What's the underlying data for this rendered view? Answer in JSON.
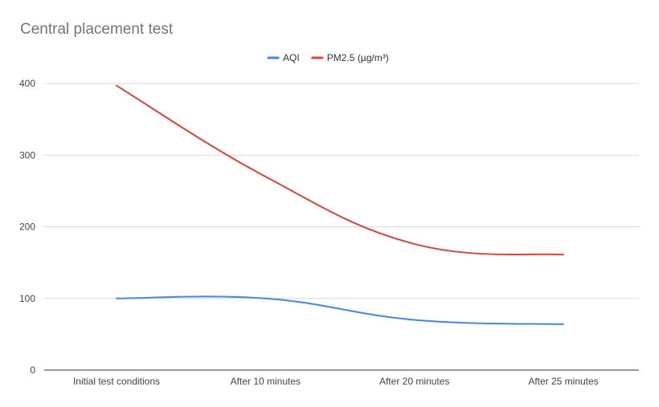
{
  "chart_data": {
    "type": "line",
    "title": "Central placement test",
    "xlabel": "",
    "ylabel": "",
    "categories": [
      "Initial test conditions",
      "After 10 minutes",
      "After 20 minutes",
      "After 25 minutes"
    ],
    "series": [
      {
        "name": "AQI",
        "values": [
          100,
          100,
          70,
          64
        ],
        "color": "#4285f4"
      },
      {
        "name": "PM2.5 (µg/m³)",
        "values": [
          397,
          270,
          176,
          161
        ],
        "color": "#db4437"
      }
    ],
    "ylim": [
      0,
      400
    ],
    "yticks": [
      "0",
      "100",
      "200",
      "300",
      "400"
    ],
    "grid": true,
    "legend_position": "top-center",
    "smooth": true
  }
}
